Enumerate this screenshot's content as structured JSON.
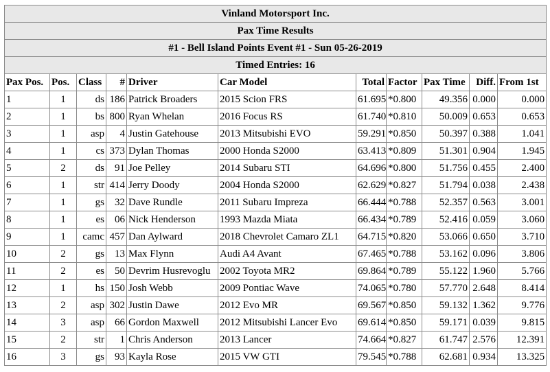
{
  "title_lines": [
    "Vinland Motorsport Inc.",
    "Pax Time Results",
    "#1 - Bell Island Points Event #1 - Sun 05-26-2019",
    "Timed Entries: 16"
  ],
  "columns": [
    "Pax Pos.",
    "Pos.",
    "Class",
    "#",
    "Driver",
    "Car Model",
    "Total",
    "Factor",
    "Pax Time",
    "Diff.",
    "From 1st"
  ],
  "rows": [
    [
      "1",
      "1",
      "ds",
      "186",
      "Patrick Broaders",
      "2015 Scion FRS",
      "61.695",
      "*0.800",
      "49.356",
      "0.000",
      "0.000"
    ],
    [
      "2",
      "1",
      "bs",
      "800",
      "Ryan Whelan",
      "2016 Focus RS",
      "61.740",
      "*0.810",
      "50.009",
      "0.653",
      "0.653"
    ],
    [
      "3",
      "1",
      "asp",
      "4",
      "Justin Gatehouse",
      "2013 Mitsubishi EVO",
      "59.291",
      "*0.850",
      "50.397",
      "0.388",
      "1.041"
    ],
    [
      "4",
      "1",
      "cs",
      "373",
      "Dylan Thomas",
      "2000 Honda S2000",
      "63.413",
      "*0.809",
      "51.301",
      "0.904",
      "1.945"
    ],
    [
      "5",
      "2",
      "ds",
      "91",
      "Joe Pelley",
      "2014 Subaru STI",
      "64.696",
      "*0.800",
      "51.756",
      "0.455",
      "2.400"
    ],
    [
      "6",
      "1",
      "str",
      "414",
      "Jerry Doody",
      "2004 Honda S2000",
      "62.629",
      "*0.827",
      "51.794",
      "0.038",
      "2.438"
    ],
    [
      "7",
      "1",
      "gs",
      "32",
      "Dave Rundle",
      "2011 Subaru Impreza",
      "66.444",
      "*0.788",
      "52.357",
      "0.563",
      "3.001"
    ],
    [
      "8",
      "1",
      "es",
      "06",
      "Nick Henderson",
      "1993 Mazda Miata",
      "66.434",
      "*0.789",
      "52.416",
      "0.059",
      "3.060"
    ],
    [
      "9",
      "1",
      "camc",
      "457",
      "Dan Aylward",
      "2018 Chevrolet Camaro ZL1",
      "64.715",
      "*0.820",
      "53.066",
      "0.650",
      "3.710"
    ],
    [
      "10",
      "2",
      "gs",
      "13",
      "Max Flynn",
      "Audi A4 Avant",
      "67.465",
      "*0.788",
      "53.162",
      "0.096",
      "3.806"
    ],
    [
      "11",
      "2",
      "es",
      "50",
      "Devrim Husrevoglu",
      "2002 Toyota MR2",
      "69.864",
      "*0.789",
      "55.122",
      "1.960",
      "5.766"
    ],
    [
      "12",
      "1",
      "hs",
      "150",
      "Josh Webb",
      "2009 Pontiac Wave",
      "74.065",
      "*0.780",
      "57.770",
      "2.648",
      "8.414"
    ],
    [
      "13",
      "2",
      "asp",
      "302",
      "Justin Dawe",
      "2012 Evo MR",
      "69.567",
      "*0.850",
      "59.132",
      "1.362",
      "9.776"
    ],
    [
      "14",
      "3",
      "asp",
      "66",
      "Gordon Maxwell",
      "2012 Mitsubishi Lancer Evo",
      "69.614",
      "*0.850",
      "59.171",
      "0.039",
      "9.815"
    ],
    [
      "15",
      "2",
      "str",
      "1",
      "Chris Anderson",
      "2013 Lancer",
      "74.664",
      "*0.827",
      "61.747",
      "2.576",
      "12.391"
    ],
    [
      "16",
      "3",
      "gs",
      "93",
      "Kayla Rose",
      "2015 VW GTI",
      "79.545",
      "*0.788",
      "62.681",
      "0.934",
      "13.325"
    ]
  ]
}
